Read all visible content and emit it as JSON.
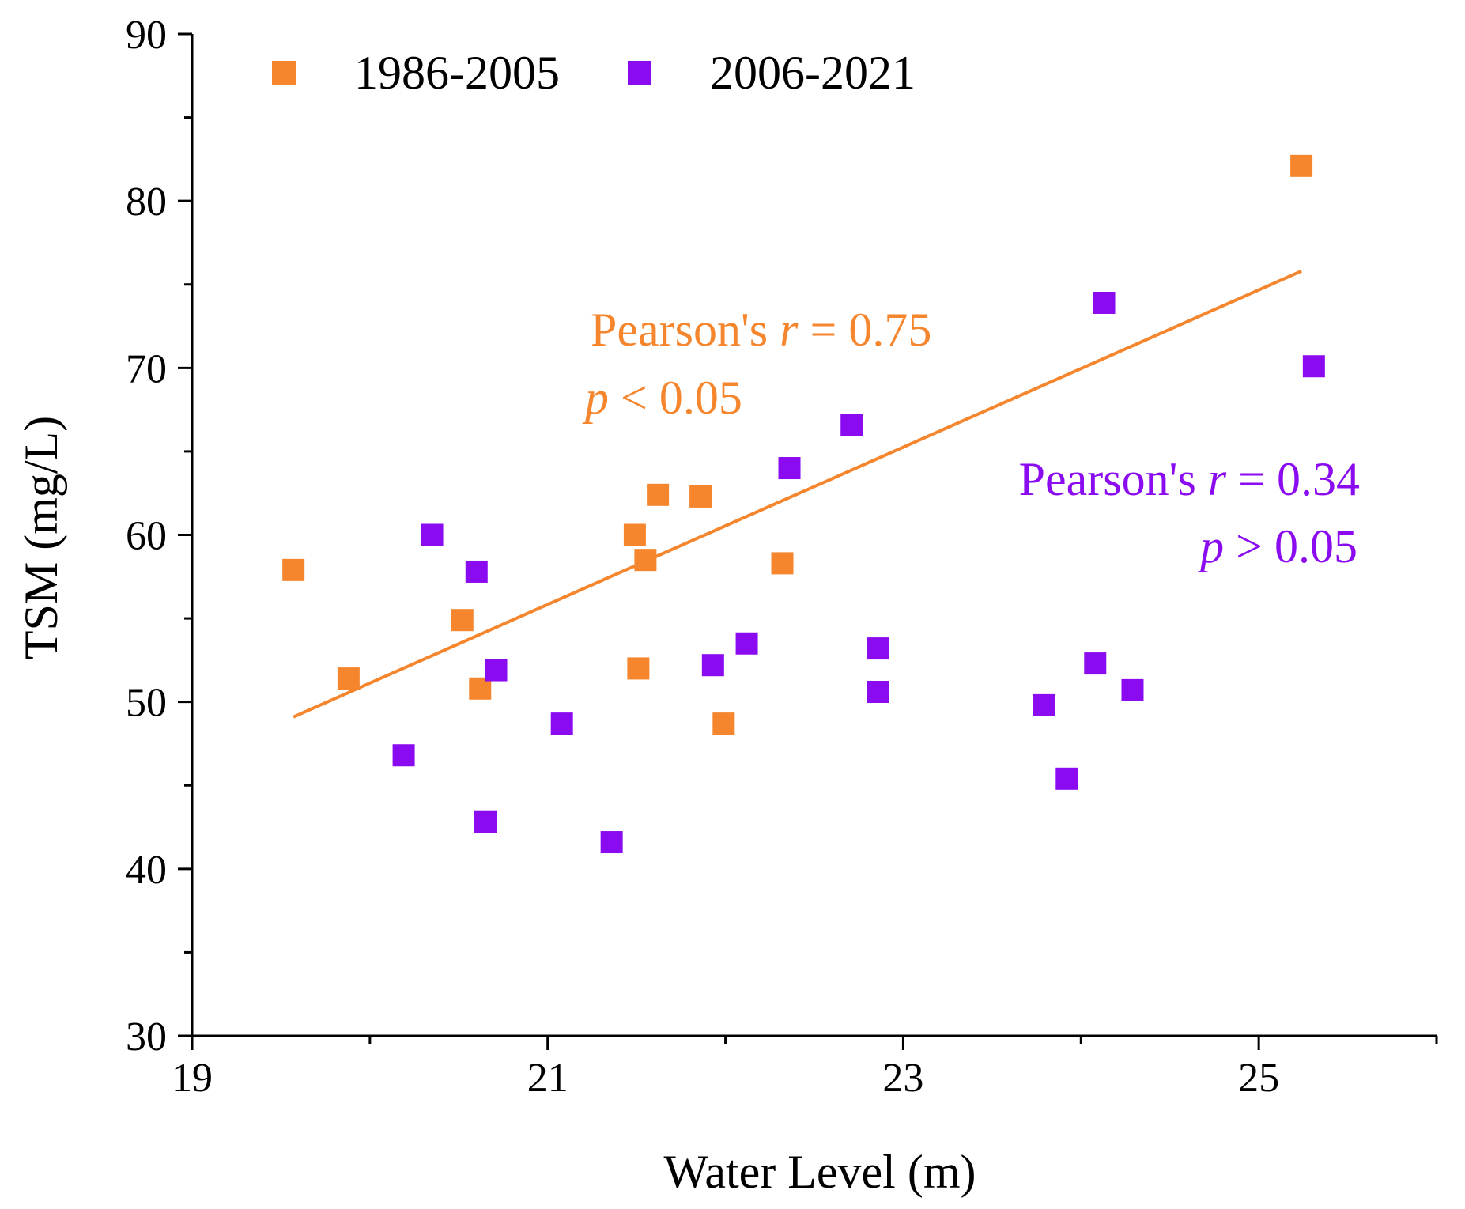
{
  "colors": {
    "series_1986_2005": "#f5862e",
    "series_2006_2021": "#8b0bf0",
    "axis": "#000000"
  },
  "chart_data": {
    "type": "scatter",
    "title": "",
    "xlabel": "Water Level (m)",
    "ylabel": "TSM (mg/L)",
    "xlim": [
      19,
      26
    ],
    "ylim": [
      30,
      90
    ],
    "x_major_ticks": [
      19,
      21,
      23,
      25
    ],
    "x_tick_labels": [
      "19",
      "21",
      "23",
      "25"
    ],
    "x_minor_ticks": [
      20,
      22,
      24,
      26
    ],
    "y_major_ticks": [
      30,
      40,
      50,
      60,
      70,
      80,
      90
    ],
    "y_tick_labels": [
      "30",
      "40",
      "50",
      "60",
      "70",
      "80",
      "90"
    ],
    "y_minor_ticks": [
      35,
      45,
      55,
      65,
      75,
      85
    ],
    "grid": false,
    "legend_position": "top-left",
    "series": [
      {
        "name": "1986-2005",
        "color": "#f5862e",
        "points": [
          {
            "x": 19.57,
            "y": 57.9
          },
          {
            "x": 19.88,
            "y": 51.4
          },
          {
            "x": 20.52,
            "y": 54.9
          },
          {
            "x": 20.62,
            "y": 50.8
          },
          {
            "x": 21.49,
            "y": 60.0
          },
          {
            "x": 21.51,
            "y": 52.0
          },
          {
            "x": 21.55,
            "y": 58.5
          },
          {
            "x": 21.62,
            "y": 62.4
          },
          {
            "x": 21.86,
            "y": 62.3
          },
          {
            "x": 21.99,
            "y": 48.7
          },
          {
            "x": 22.32,
            "y": 58.3
          },
          {
            "x": 25.24,
            "y": 82.1
          }
        ],
        "trendline": {
          "x": [
            19.57,
            25.24
          ],
          "y": [
            49.1,
            75.8
          ]
        },
        "annotation": {
          "line1": "Pearson's r = 0.75",
          "line2": "p < 0.05"
        }
      },
      {
        "name": "2006-2021",
        "color": "#8b0bf0",
        "points": [
          {
            "x": 20.19,
            "y": 46.8
          },
          {
            "x": 20.35,
            "y": 60.0
          },
          {
            "x": 20.6,
            "y": 57.8
          },
          {
            "x": 20.65,
            "y": 42.8
          },
          {
            "x": 20.71,
            "y": 51.9
          },
          {
            "x": 21.08,
            "y": 48.7
          },
          {
            "x": 21.36,
            "y": 41.6
          },
          {
            "x": 21.93,
            "y": 52.2
          },
          {
            "x": 22.12,
            "y": 53.5
          },
          {
            "x": 22.36,
            "y": 64.0
          },
          {
            "x": 22.71,
            "y": 66.6
          },
          {
            "x": 22.86,
            "y": 53.2
          },
          {
            "x": 22.86,
            "y": 50.6
          },
          {
            "x": 23.79,
            "y": 49.8
          },
          {
            "x": 23.92,
            "y": 45.4
          },
          {
            "x": 24.08,
            "y": 52.3
          },
          {
            "x": 24.13,
            "y": 73.9
          },
          {
            "x": 24.29,
            "y": 50.7
          },
          {
            "x": 25.31,
            "y": 70.1
          }
        ],
        "annotation": {
          "line1": "Pearson's r = 0.34",
          "line2": "p > 0.05"
        }
      }
    ]
  }
}
